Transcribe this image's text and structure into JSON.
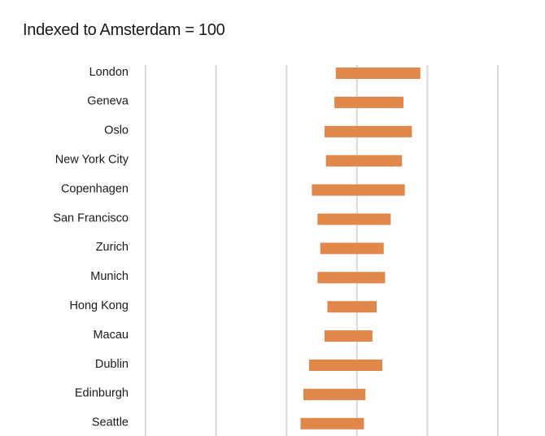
{
  "chart_data": {
    "type": "bar",
    "orientation": "horizontal",
    "style": "floating-range",
    "title": "Indexed to Amsterdam = 100",
    "xlabel": "",
    "ylabel": "",
    "grid": true,
    "bar_color": "#e0874a",
    "categories": [
      "London",
      "Geneva",
      "Oslo",
      "New York City",
      "Copenhagen",
      "San Francisco",
      "Zurich",
      "Munich",
      "Hong Kong",
      "Macau",
      "Dublin",
      "Edinburgh",
      "Seattle"
    ],
    "ranges": [
      [
        85,
        145
      ],
      [
        84,
        133
      ],
      [
        77,
        139
      ],
      [
        78,
        132
      ],
      [
        68,
        134
      ],
      [
        72,
        124
      ],
      [
        74,
        119
      ],
      [
        72,
        120
      ],
      [
        79,
        114
      ],
      [
        77,
        111
      ],
      [
        66,
        118
      ],
      [
        62,
        106
      ],
      [
        60,
        105
      ]
    ],
    "xlim": [
      -50,
      200
    ],
    "gridlines": [
      -50,
      0,
      50,
      100,
      150,
      200
    ]
  }
}
